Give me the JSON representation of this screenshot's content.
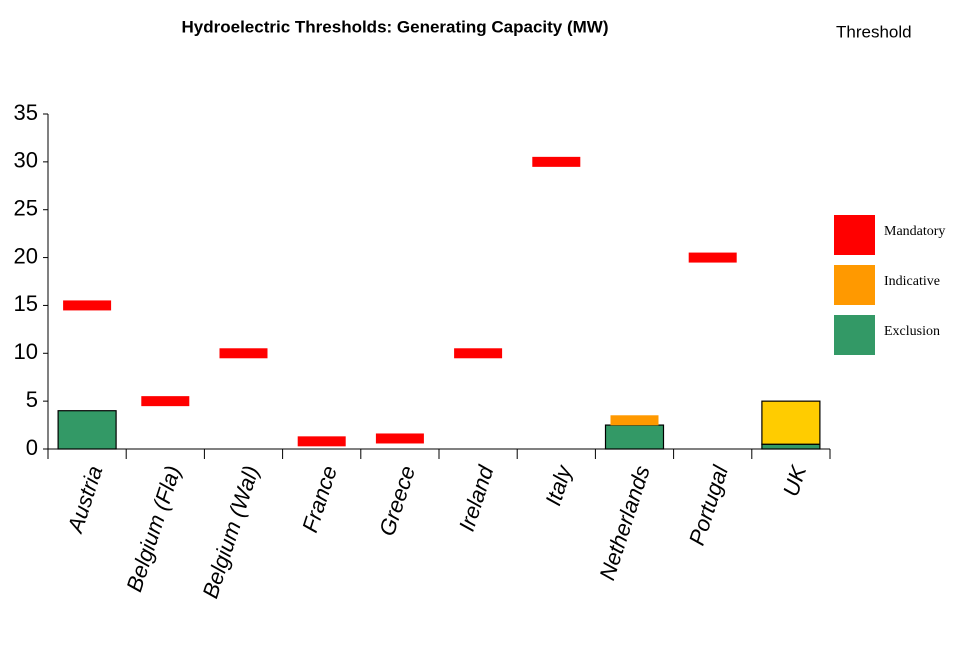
{
  "chart_data": {
    "type": "bar",
    "title": "Hydroelectric Thresholds: Generating Capacity (MW)",
    "legend_title": "Threshold",
    "categories": [
      "Austria",
      "Belgium (Fla)",
      "Belgium (Wal)",
      "France",
      "Greece",
      "Ireland",
      "Italy",
      "Netherlands",
      "Portugal",
      "UK"
    ],
    "series": [
      {
        "name": "Mandatory",
        "color": "#ff0000",
        "values": [
          15,
          5,
          10,
          0.8,
          1.1,
          10,
          30,
          null,
          20,
          null
        ]
      },
      {
        "name": "Indicative",
        "color": "#ff9900",
        "values": [
          null,
          null,
          null,
          null,
          null,
          null,
          null,
          3,
          null,
          null
        ]
      },
      {
        "name": "Exclusion",
        "color": "#339966",
        "values": [
          4,
          null,
          null,
          null,
          null,
          null,
          null,
          2.5,
          null,
          0.5
        ]
      },
      {
        "color": "#ffcc00",
        "values": [
          null,
          null,
          null,
          null,
          null,
          null,
          null,
          null,
          null,
          4.5
        ]
      }
    ],
    "ylim": [
      0,
      35
    ],
    "yticks": [
      0,
      5,
      10,
      15,
      20,
      25,
      30,
      35
    ],
    "legend": "right"
  }
}
